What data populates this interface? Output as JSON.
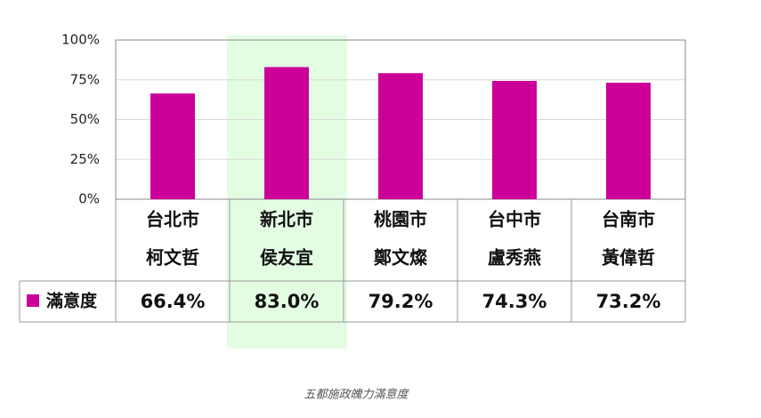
{
  "chart_data": {
    "type": "bar",
    "categories": [
      [
        "台北市",
        "柯文哲"
      ],
      [
        "新北市",
        "侯友宜"
      ],
      [
        "桃園市",
        "鄭文燦"
      ],
      [
        "台中市",
        "盧秀燕"
      ],
      [
        "台南市",
        "黃偉哲"
      ]
    ],
    "series": [
      {
        "name": "滿意度",
        "color": "#cc0099",
        "values": [
          66.4,
          83.0,
          79.2,
          74.3,
          73.2
        ],
        "value_labels": [
          "66.4%",
          "83.0%",
          "79.2%",
          "74.3%",
          "73.2%"
        ]
      }
    ],
    "ylim": [
      0,
      100
    ],
    "yticks": [
      {
        "value": 0,
        "label": "0%"
      },
      {
        "value": 25,
        "label": "25%"
      },
      {
        "value": 50,
        "label": "50%"
      },
      {
        "value": 75,
        "label": "75%"
      },
      {
        "value": 100,
        "label": "100%"
      }
    ],
    "grid": true,
    "highlight": {
      "index": 1,
      "color": "#e3fde3"
    },
    "caption": "五都施政魄力滿意度"
  }
}
